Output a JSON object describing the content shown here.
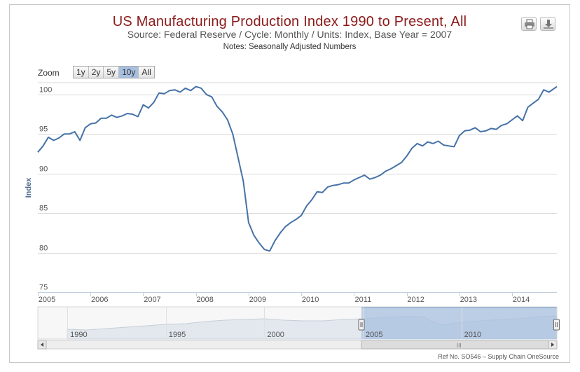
{
  "header": {
    "title": "US Manufacturing Production Index 1990 to Present, All",
    "subtitle": "Source: Federal Reserve / Cycle: Monthly / Units: Index, Base Year = 2007",
    "notes": "Notes: Seasonally Adjusted Numbers"
  },
  "toolbar": {
    "print_icon": "printer-icon",
    "export_icon": "download-icon"
  },
  "zoom": {
    "label": "Zoom",
    "buttons": [
      "1y",
      "2y",
      "5y",
      "10y",
      "All"
    ],
    "active": "10y"
  },
  "navigator": {
    "labels": [
      "1990",
      "1995",
      "2000",
      "2005",
      "2010"
    ],
    "selected_range": [
      2004.93,
      2014.83
    ],
    "scroll_grip": "III"
  },
  "footer": {
    "ref": "Ref No. SO546 – Supply Chain OneSource"
  },
  "colors": {
    "line": "#4572a7",
    "title": "#8b1a1a",
    "navigator_fill": "#a8c0e0",
    "grid": "#d8d8d8"
  },
  "chart_data": {
    "type": "line",
    "title": "US Manufacturing Production Index 1990 to Present, All",
    "subtitle": "Source: Federal Reserve / Cycle: Monthly / Units: Index, Base Year = 2007",
    "xlabel": "",
    "ylabel": "Index",
    "xlim": [
      2005.0,
      2014.85
    ],
    "ylim": [
      75,
      101.5
    ],
    "y_ticks": [
      75,
      80,
      85,
      90,
      95,
      100
    ],
    "x_ticks": [
      "2005",
      "2006",
      "2007",
      "2008",
      "2009",
      "2010",
      "2011",
      "2012",
      "2013",
      "2014"
    ],
    "grid": true,
    "legend": "none",
    "series": [
      {
        "x": [
          2005.0,
          2005.1,
          2005.2,
          2005.3,
          2005.4,
          2005.5,
          2005.6,
          2005.7,
          2005.8,
          2005.9,
          2006.0,
          2006.1,
          2006.2,
          2006.3,
          2006.4,
          2006.5,
          2006.6,
          2006.7,
          2006.8,
          2006.9,
          2007.0,
          2007.1,
          2007.2,
          2007.3,
          2007.4,
          2007.5,
          2007.6,
          2007.7,
          2007.8,
          2007.9,
          2008.0,
          2008.1,
          2008.2,
          2008.3,
          2008.4,
          2008.5,
          2008.6,
          2008.7,
          2008.8,
          2008.9,
          2009.0,
          2009.1,
          2009.2,
          2009.3,
          2009.4,
          2009.5,
          2009.6,
          2009.7,
          2009.8,
          2009.9,
          2010.0,
          2010.1,
          2010.2,
          2010.3,
          2010.4,
          2010.5,
          2010.6,
          2010.7,
          2010.8,
          2010.9,
          2011.0,
          2011.1,
          2011.2,
          2011.3,
          2011.4,
          2011.5,
          2011.6,
          2011.7,
          2011.8,
          2011.9,
          2012.0,
          2012.1,
          2012.2,
          2012.3,
          2012.4,
          2012.5,
          2012.6,
          2012.7,
          2012.8,
          2012.9,
          2013.0,
          2013.1,
          2013.2,
          2013.3,
          2013.4,
          2013.5,
          2013.6,
          2013.7,
          2013.8,
          2013.9,
          2014.0,
          2014.1,
          2014.2,
          2014.3,
          2014.4,
          2014.5,
          2014.6,
          2014.7,
          2014.85
        ],
        "values": [
          92.7,
          93.5,
          94.6,
          94.2,
          94.5,
          95.0,
          95.0,
          95.3,
          94.2,
          95.8,
          96.3,
          96.4,
          97.0,
          97.0,
          97.4,
          97.1,
          97.3,
          97.6,
          97.5,
          97.2,
          98.7,
          98.3,
          99.0,
          100.2,
          100.1,
          100.5,
          100.6,
          100.3,
          100.8,
          100.5,
          101.0,
          100.8,
          100.0,
          99.7,
          98.5,
          97.8,
          96.8,
          95.0,
          92.0,
          89.0,
          83.8,
          82.2,
          81.2,
          80.4,
          80.2,
          81.5,
          82.5,
          83.3,
          83.8,
          84.2,
          84.7,
          85.9,
          86.7,
          87.7,
          87.6,
          88.3,
          88.5,
          88.6,
          88.8,
          88.8,
          89.2,
          89.5,
          89.8,
          89.3,
          89.5,
          89.8,
          90.3,
          90.6,
          91.0,
          91.4,
          92.2,
          93.2,
          93.8,
          93.5,
          94.0,
          93.8,
          94.1,
          93.6,
          93.5,
          93.4,
          94.8,
          95.4,
          95.5,
          95.8,
          95.3,
          95.4,
          95.7,
          95.6,
          96.1,
          96.3,
          96.8,
          97.3,
          96.7,
          98.4,
          98.9,
          99.4,
          100.6,
          100.3,
          101.0
        ]
      }
    ]
  }
}
